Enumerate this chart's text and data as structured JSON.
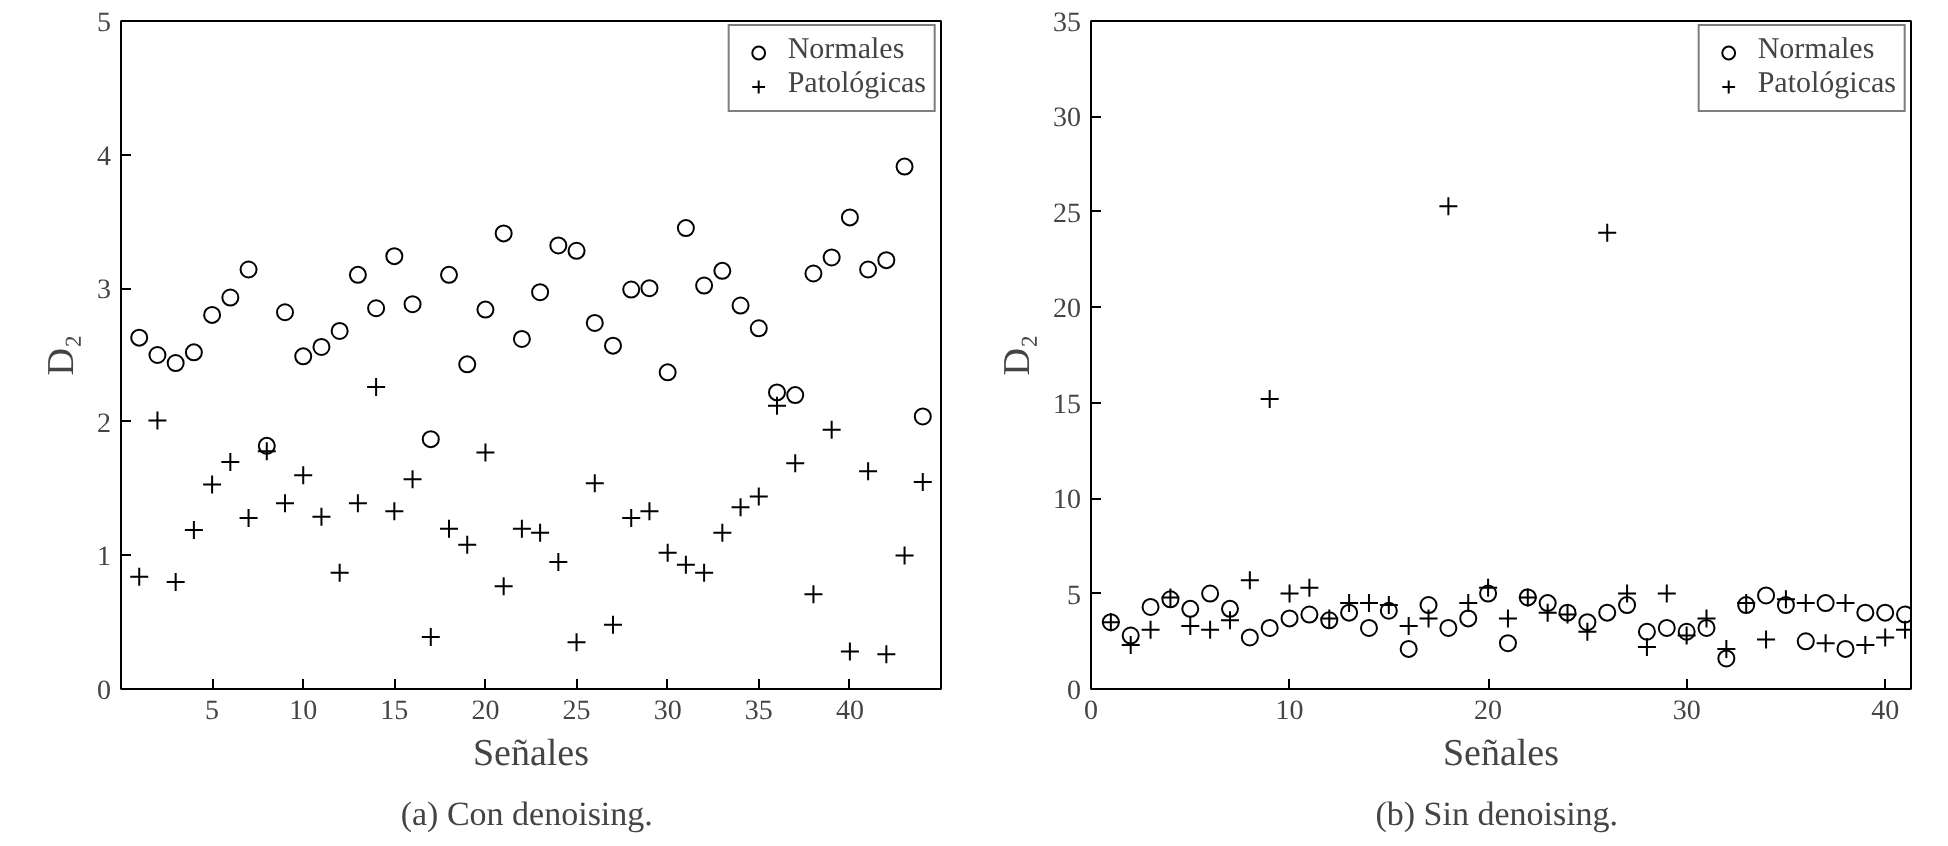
{
  "chart_data": [
    {
      "type": "scatter",
      "xlabel": "Señales",
      "ylabel": "D₂",
      "annotations": [
        "(a)  Con denoising."
      ],
      "x": [
        1,
        2,
        3,
        4,
        5,
        6,
        7,
        8,
        9,
        10,
        11,
        12,
        13,
        14,
        15,
        16,
        17,
        18,
        19,
        20,
        21,
        22,
        23,
        24,
        25,
        26,
        27,
        28,
        29,
        30,
        31,
        32,
        33,
        34,
        35,
        36,
        37,
        38,
        39,
        40,
        41,
        42,
        43,
        44
      ],
      "series": [
        {
          "name": "Normales",
          "color": "#000000",
          "marker": "circle",
          "values": [
            2.63,
            2.5,
            2.44,
            2.52,
            2.8,
            2.93,
            3.14,
            1.82,
            2.82,
            2.49,
            2.56,
            2.68,
            3.1,
            2.85,
            3.24,
            2.88,
            1.87,
            3.1,
            2.43,
            2.84,
            3.41,
            2.62,
            2.97,
            3.32,
            3.28,
            2.74,
            2.57,
            2.99,
            3.0,
            2.37,
            3.45,
            3.02,
            3.13,
            2.87,
            2.7,
            2.22,
            2.2,
            3.11,
            3.23,
            3.53,
            3.14,
            3.21,
            3.91,
            2.04
          ]
        },
        {
          "name": "Patológicas",
          "color": "#000000",
          "marker": "cross",
          "values": [
            0.84,
            2.01,
            0.8,
            1.19,
            1.53,
            1.7,
            1.28,
            1.78,
            1.39,
            1.6,
            1.29,
            0.87,
            1.39,
            2.26,
            1.33,
            1.57,
            0.39,
            1.2,
            1.08,
            1.77,
            0.77,
            1.2,
            1.17,
            0.95,
            0.35,
            1.54,
            0.48,
            1.28,
            1.33,
            1.02,
            0.93,
            0.87,
            1.17,
            1.36,
            1.44,
            2.12,
            1.69,
            0.71,
            1.94,
            0.28,
            1.63,
            0.26,
            1.0,
            1.55
          ]
        }
      ],
      "xlim": [
        0,
        45
      ],
      "xticks": [
        5,
        10,
        15,
        20,
        25,
        30,
        35,
        40
      ],
      "ylim": [
        0,
        5
      ],
      "yticks": [
        0,
        1,
        2,
        3,
        4,
        5
      ],
      "legend": "top right",
      "grid": false
    },
    {
      "type": "scatter",
      "xlabel": "Señales",
      "ylabel": "D₂",
      "annotations": [
        "(b)  Sin denoising."
      ],
      "x": [
        1,
        2,
        3,
        4,
        5,
        6,
        7,
        8,
        9,
        10,
        11,
        12,
        13,
        14,
        15,
        16,
        17,
        18,
        19,
        20,
        21,
        22,
        23,
        24,
        25,
        26,
        27,
        28,
        29,
        30,
        31,
        32,
        33,
        34,
        35,
        36,
        37,
        38,
        39,
        40,
        41
      ],
      "series": [
        {
          "name": "Normales",
          "color": "#000000",
          "marker": "circle",
          "values": [
            3.5,
            2.8,
            4.3,
            4.7,
            4.2,
            5.0,
            4.2,
            2.7,
            3.2,
            3.7,
            3.9,
            3.6,
            4.0,
            3.2,
            4.1,
            2.1,
            4.4,
            3.2,
            3.7,
            5.0,
            2.4,
            4.8,
            4.5,
            4.0,
            3.5,
            4.0,
            4.4,
            3.0,
            3.2,
            3.0,
            3.2,
            1.6,
            4.4,
            4.9,
            4.4,
            2.5,
            4.5,
            2.1,
            4.0,
            4.0,
            3.9
          ]
        },
        {
          "name": "Patológicas",
          "color": "#000000",
          "marker": "cross",
          "values": [
            3.5,
            2.3,
            3.1,
            4.8,
            3.3,
            3.1,
            3.6,
            5.7,
            15.2,
            5.0,
            5.3,
            3.7,
            4.5,
            4.5,
            4.4,
            3.3,
            3.7,
            25.3,
            4.5,
            5.3,
            3.7,
            4.8,
            4.0,
            3.9,
            3.0,
            23.9,
            5.0,
            2.2,
            5.0,
            2.8,
            3.7,
            2.1,
            4.5,
            2.6,
            4.7,
            4.5,
            2.4,
            4.5,
            2.3,
            2.7,
            3.1
          ]
        }
      ],
      "xlim": [
        0,
        41.3
      ],
      "xticks": [
        0,
        10,
        20,
        30,
        40
      ],
      "ylim": [
        0,
        35
      ],
      "yticks": [
        0,
        5,
        10,
        15,
        20,
        25,
        30,
        35
      ],
      "legend": "top right",
      "grid": false
    }
  ]
}
